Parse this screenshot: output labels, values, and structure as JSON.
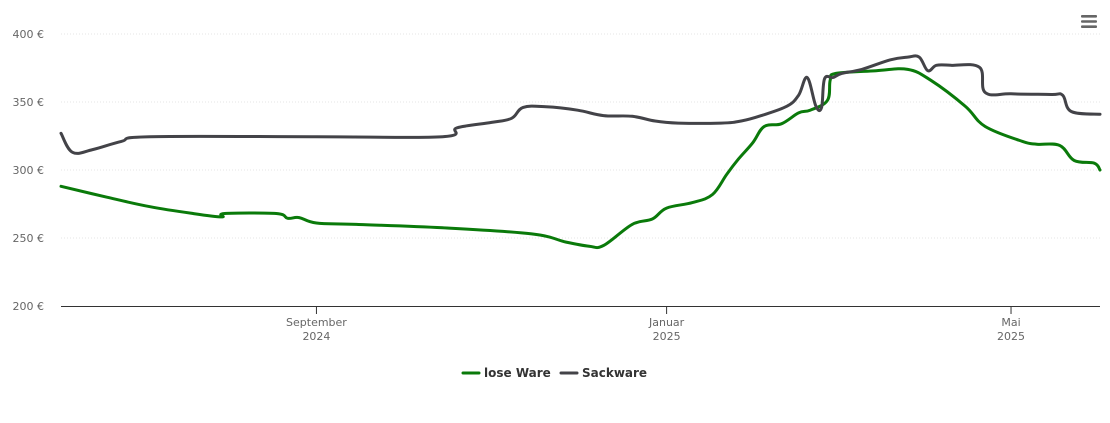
{
  "chart_data": {
    "type": "line",
    "title": "",
    "xlabel": "",
    "ylabel": "",
    "ylim": [
      200,
      400
    ],
    "y_ticks": [
      {
        "value": 200,
        "label": "200 €"
      },
      {
        "value": 250,
        "label": "250 €"
      },
      {
        "value": 300,
        "label": "300 €"
      },
      {
        "value": 350,
        "label": "350 €"
      },
      {
        "value": 400,
        "label": "400 €"
      }
    ],
    "x_ticks": [
      {
        "date": "2024-09-01",
        "line1": "September",
        "line2": "2024"
      },
      {
        "date": "2025-01-01",
        "line1": "Januar",
        "line2": "2025"
      },
      {
        "date": "2025-05-01",
        "line1": "Mai",
        "line2": "2025"
      }
    ],
    "xlim": [
      "2024-06-04",
      "2025-06-01"
    ],
    "grid": true,
    "legend": "bottom-center",
    "menu_icon": "hamburger-menu-icon",
    "series": [
      {
        "name": "lose Ware",
        "color": "#0a7a0a",
        "points": [
          [
            "2024-06-04",
            288
          ],
          [
            "2024-06-20",
            280
          ],
          [
            "2024-07-05",
            273
          ],
          [
            "2024-07-20",
            268
          ],
          [
            "2024-07-30",
            265.5
          ],
          [
            "2024-07-31",
            268
          ],
          [
            "2024-08-18",
            268
          ],
          [
            "2024-08-22",
            264.5
          ],
          [
            "2024-08-26",
            265
          ],
          [
            "2024-09-01",
            261
          ],
          [
            "2024-09-15",
            260
          ],
          [
            "2024-10-15",
            257.5
          ],
          [
            "2024-11-15",
            253
          ],
          [
            "2024-11-27",
            247
          ],
          [
            "2024-12-05",
            244
          ],
          [
            "2024-12-10",
            244.5
          ],
          [
            "2024-12-20",
            260
          ],
          [
            "2024-12-27",
            264
          ],
          [
            "2025-01-01",
            272
          ],
          [
            "2025-01-10",
            276
          ],
          [
            "2025-01-17",
            282
          ],
          [
            "2025-01-22",
            297
          ],
          [
            "2025-01-26",
            308
          ],
          [
            "2025-01-31",
            320
          ],
          [
            "2025-02-04",
            332
          ],
          [
            "2025-02-10",
            334
          ],
          [
            "2025-02-16",
            342
          ],
          [
            "2025-02-20",
            344
          ],
          [
            "2025-02-26",
            351
          ],
          [
            "2025-02-27",
            366
          ],
          [
            "2025-03-01",
            371
          ],
          [
            "2025-03-15",
            373
          ],
          [
            "2025-03-26",
            374
          ],
          [
            "2025-04-03",
            366
          ],
          [
            "2025-04-15",
            347
          ],
          [
            "2025-04-22",
            332
          ],
          [
            "2025-05-05",
            321
          ],
          [
            "2025-05-10",
            319
          ],
          [
            "2025-05-18",
            318
          ],
          [
            "2025-05-23",
            307
          ],
          [
            "2025-05-30",
            305
          ],
          [
            "2025-06-01",
            300
          ]
        ]
      },
      {
        "name": "Sackware",
        "color": "#434348",
        "points": [
          [
            "2024-06-04",
            327
          ],
          [
            "2024-06-08",
            313
          ],
          [
            "2024-06-15",
            315
          ],
          [
            "2024-06-25",
            321
          ],
          [
            "2024-07-05",
            324.5
          ],
          [
            "2024-09-01",
            324.5
          ],
          [
            "2024-10-15",
            324.5
          ],
          [
            "2024-10-20",
            331
          ],
          [
            "2024-11-01",
            335
          ],
          [
            "2024-11-08",
            338
          ],
          [
            "2024-11-12",
            346
          ],
          [
            "2024-11-20",
            346.5
          ],
          [
            "2024-12-01",
            344
          ],
          [
            "2024-12-10",
            340
          ],
          [
            "2024-12-20",
            339.5
          ],
          [
            "2024-12-28",
            336
          ],
          [
            "2025-01-05",
            334.5
          ],
          [
            "2025-01-20",
            334.5
          ],
          [
            "2025-01-27",
            336
          ],
          [
            "2025-02-03",
            340
          ],
          [
            "2025-02-12",
            347
          ],
          [
            "2025-02-16",
            355
          ],
          [
            "2025-02-19",
            368
          ],
          [
            "2025-02-22",
            347
          ],
          [
            "2025-02-24",
            346
          ],
          [
            "2025-02-25",
            367
          ],
          [
            "2025-02-28",
            368
          ],
          [
            "2025-03-03",
            371
          ],
          [
            "2025-03-10",
            374
          ],
          [
            "2025-03-20",
            381
          ],
          [
            "2025-03-26",
            383
          ],
          [
            "2025-03-30",
            383
          ],
          [
            "2025-04-02",
            373
          ],
          [
            "2025-04-05",
            377
          ],
          [
            "2025-04-10",
            377
          ],
          [
            "2025-04-20",
            375.5
          ],
          [
            "2025-04-22",
            357
          ],
          [
            "2025-05-01",
            356
          ],
          [
            "2025-05-15",
            355.5
          ],
          [
            "2025-05-19",
            355
          ],
          [
            "2025-05-22",
            343
          ],
          [
            "2025-06-01",
            341
          ]
        ]
      }
    ]
  }
}
